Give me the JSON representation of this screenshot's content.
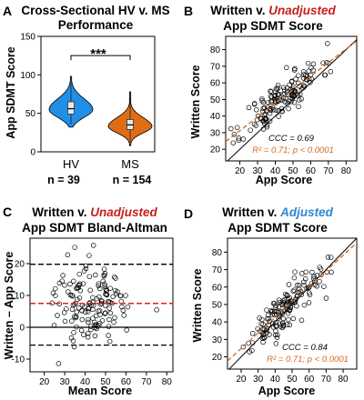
{
  "panels": {
    "A": "A",
    "B": "B",
    "C": "C",
    "D": "D"
  },
  "chart_data": [
    {
      "id": "A",
      "type": "violin",
      "title_line1": "Cross-Sectional HV v. MS",
      "title_line2": "Performance",
      "ylabel": "App SDMT Score",
      "ylim": [
        0,
        150
      ],
      "yticks": [
        0,
        50,
        100,
        150
      ],
      "categories": [
        "HV",
        "MS"
      ],
      "n_labels": [
        "n = 39",
        "n = 154"
      ],
      "colors": [
        "#1f8fe8",
        "#e06d16"
      ],
      "significance": "***",
      "groups": [
        {
          "name": "HV",
          "min": 32,
          "q1": 49,
          "median": 56,
          "q3": 65,
          "max": 98,
          "mode": 55
        },
        {
          "name": "MS",
          "min": 8,
          "q1": 29,
          "median": 35,
          "q3": 42,
          "max": 78,
          "mode": 33
        }
      ]
    },
    {
      "id": "B",
      "type": "scatter",
      "title_line1_prefix": "Written v. ",
      "title_line1_emph": "Unadjusted",
      "title_emph_color": "#c81e1e",
      "title_line2": "App SDMT Score",
      "xlabel": "App Score",
      "ylabel": "Written Score",
      "xlim": [
        12,
        86
      ],
      "ylim": [
        13,
        88
      ],
      "xticks": [
        20,
        30,
        40,
        50,
        60,
        70,
        80
      ],
      "yticks": [
        20,
        30,
        40,
        50,
        60,
        70,
        80
      ],
      "ccc_text": "CCC = 0.69",
      "r2_text": "R² = 0.71; p < 0.0001",
      "fit": {
        "slope": 0.82,
        "intercept": 14.8
      },
      "identity": true
    },
    {
      "id": "C",
      "type": "bland-altman",
      "title_line1_prefix": "Written v. ",
      "title_line1_emph": "Unadjusted",
      "title_emph_color": "#c81e1e",
      "title_line2": "App SDMT Bland-Altman",
      "xlabel": "Mean Score",
      "ylabel": "Written – App Score",
      "xlim": [
        13,
        83
      ],
      "ylim": [
        -14,
        28
      ],
      "xticks": [
        20,
        30,
        40,
        50,
        60,
        70,
        80
      ],
      "yticks": [
        -10,
        0,
        10,
        20
      ],
      "mean_diff": 7.5,
      "upper_loa": 19.8,
      "lower_loa": -5.6
    },
    {
      "id": "D",
      "type": "scatter",
      "title_line1_prefix": "Written v. ",
      "title_line1_emph": "Adjusted",
      "title_emph_color": "#2f86d3",
      "title_line2": "App SDMT Score",
      "xlabel": "App Score",
      "ylabel": "Written Score",
      "xlim": [
        12,
        88
      ],
      "ylim": [
        13,
        88
      ],
      "xticks": [
        20,
        30,
        40,
        50,
        60,
        70,
        80
      ],
      "yticks": [
        20,
        30,
        40,
        50,
        60,
        70,
        80
      ],
      "ccc_text": "CCC = 0.84",
      "r2_text": "R² = 0.71; p < 0.0001",
      "fit": {
        "slope": 0.89,
        "intercept": 7.0
      },
      "identity": true
    }
  ]
}
